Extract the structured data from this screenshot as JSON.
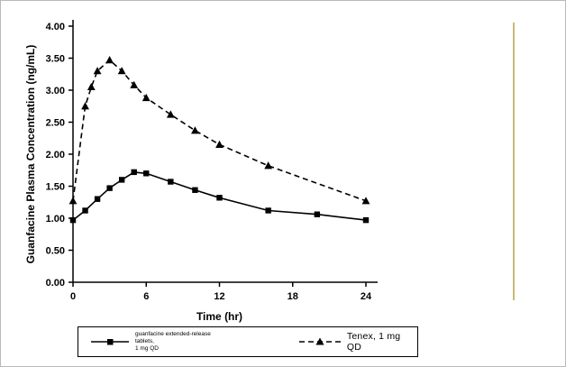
{
  "legend": {
    "series1_line1": "guanfacine extended-release tablets,",
    "series1_line2": "1 mg QD",
    "series2": "Tenex, 1 mg QD"
  },
  "chart_data": {
    "type": "line",
    "title": "",
    "xlabel": "Time (hr)",
    "ylabel": "Guanfacine Plasma Concentration (ng/mL)",
    "xlim": [
      0,
      24
    ],
    "ylim": [
      0,
      4
    ],
    "x_ticks": [
      0,
      6,
      12,
      18,
      24
    ],
    "y_tick_step": 0.5,
    "y_tick_labels": [
      "0.00",
      "0.50",
      "1.00",
      "1.50",
      "2.00",
      "2.50",
      "3.00",
      "3.50",
      "4.00"
    ],
    "grid": false,
    "legend_position": "bottom",
    "line_color": "#000000",
    "series": [
      {
        "name": "guanfacine extended-release tablets, 1 mg QD",
        "marker": "square",
        "line_style": "solid",
        "color": "#000000",
        "x": [
          0,
          1,
          2,
          3,
          4,
          5,
          6,
          8,
          10,
          12,
          16,
          20,
          24
        ],
        "y": [
          0.97,
          1.12,
          1.3,
          1.47,
          1.6,
          1.72,
          1.7,
          1.57,
          1.44,
          1.32,
          1.12,
          1.06,
          0.97
        ]
      },
      {
        "name": "Tenex, 1 mg QD",
        "marker": "triangle",
        "line_style": "dashed",
        "color": "#000000",
        "x": [
          0,
          1,
          1.5,
          2,
          3,
          4,
          5,
          6,
          8,
          10,
          12,
          16,
          24
        ],
        "y": [
          1.27,
          2.75,
          3.05,
          3.3,
          3.47,
          3.3,
          3.08,
          2.88,
          2.62,
          2.37,
          2.15,
          1.82,
          1.27
        ]
      }
    ]
  }
}
